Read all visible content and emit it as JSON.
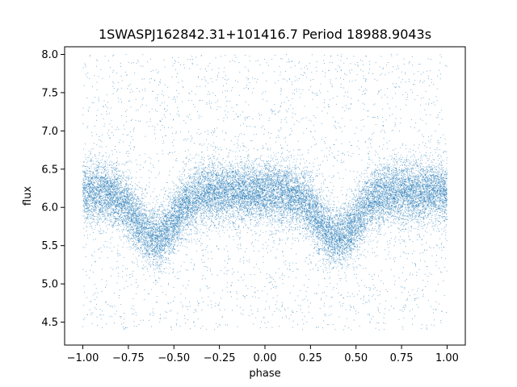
{
  "chart_data": {
    "type": "scatter",
    "title": "1SWASPJ162842.31+101416.7 Period 18988.9043s",
    "xlabel": "phase",
    "ylabel": "flux",
    "xlim": [
      -1.1,
      1.1
    ],
    "ylim": [
      4.2,
      8.1
    ],
    "x_ticks": [
      -1.0,
      -0.75,
      -0.5,
      -0.25,
      0.0,
      0.25,
      0.5,
      0.75,
      1.0
    ],
    "x_tick_labels": [
      "−1.00",
      "−0.75",
      "−0.50",
      "−0.25",
      "0.00",
      "0.25",
      "0.50",
      "0.75",
      "1.00"
    ],
    "y_ticks": [
      4.5,
      5.0,
      5.5,
      6.0,
      6.5,
      7.0,
      7.5,
      8.0
    ],
    "y_tick_labels": [
      "4.5",
      "5.0",
      "5.5",
      "6.0",
      "6.5",
      "7.0",
      "7.5",
      "8.0"
    ],
    "grid": false,
    "marker_color": "#1f77b4",
    "series": [
      {
        "phase_range": [
          -1.0,
          1.0
        ],
        "baseline_flux": 6.2,
        "baseline_spread": 0.2,
        "flux_range": [
          4.4,
          8.0
        ],
        "dip_phases": [
          -0.6,
          0.4
        ],
        "dip_min_flux": 5.6,
        "dip_half_width": 0.15
      }
    ]
  }
}
